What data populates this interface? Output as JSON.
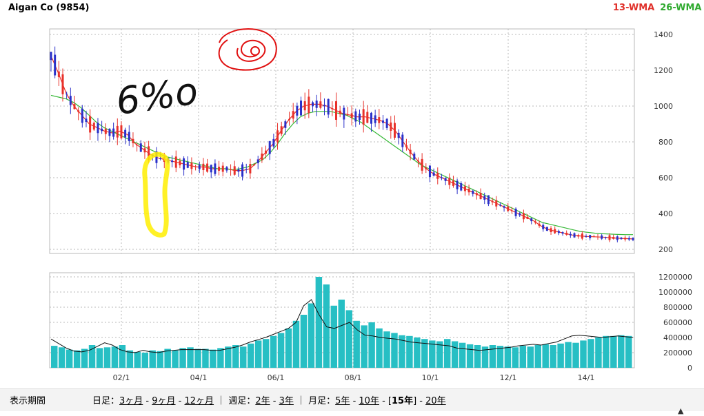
{
  "header": {
    "title": "Aigan Co (9854)",
    "legend_13": "13-WMA",
    "legend_26": "26-WMA"
  },
  "colors": {
    "up": "#e8312a",
    "down": "#2a30c9",
    "wma13": "#e8302a",
    "wma26": "#35b835",
    "volume": "#27bfc4",
    "grid": "#b8b8b8",
    "annot_yellow": "#ffef00",
    "annot_red": "#e01010",
    "annot_black": "#111111"
  },
  "chart_data": [
    {
      "type": "candlestick",
      "title": "Aigan Co (9854)",
      "x_tick_labels": [
        "02/1",
        "04/1",
        "06/1",
        "08/1",
        "10/1",
        "12/1",
        "14/1"
      ],
      "ylim": [
        200,
        1400
      ],
      "y_ticks": [
        200,
        400,
        600,
        800,
        1000,
        1200,
        1400
      ],
      "grid": true,
      "legend_position": "top-right",
      "series": [
        {
          "name": "13-WMA",
          "values": [
            1280,
            1180,
            1070,
            1000,
            950,
            900,
            880,
            860,
            850,
            860,
            840,
            790,
            760,
            730,
            710,
            700,
            690,
            680,
            670,
            660,
            660,
            650,
            650,
            650,
            640,
            640,
            650,
            690,
            740,
            790,
            860,
            920,
            970,
            1000,
            1010,
            1010,
            1000,
            980,
            960,
            950,
            940,
            940,
            930,
            920,
            900,
            860,
            800,
            740,
            690,
            650,
            620,
            600,
            580,
            560,
            540,
            520,
            500,
            480,
            460,
            440,
            420,
            400,
            380,
            360,
            330,
            310,
            300,
            290,
            280,
            275,
            272,
            270,
            268,
            265,
            262,
            260,
            258
          ]
        },
        {
          "name": "26-WMA",
          "values": [
            1060,
            1050,
            1040,
            1020,
            990,
            950,
            910,
            880,
            860,
            840,
            820,
            800,
            780,
            760,
            740,
            720,
            710,
            700,
            690,
            680,
            670,
            660,
            650,
            650,
            645,
            650,
            660,
            680,
            700,
            740,
            790,
            850,
            900,
            940,
            960,
            970,
            970,
            970,
            960,
            950,
            930,
            910,
            880,
            850,
            820,
            790,
            760,
            730,
            700,
            670,
            650,
            630,
            610,
            590,
            570,
            550,
            530,
            510,
            490,
            470,
            450,
            430,
            410,
            390,
            370,
            350,
            340,
            330,
            320,
            310,
            300,
            295,
            290,
            287,
            285,
            283,
            282,
            282
          ]
        }
      ]
    },
    {
      "type": "bar",
      "title": "",
      "x_tick_labels": [
        "02/1",
        "04/1",
        "06/1",
        "08/1",
        "10/1",
        "12/1",
        "14/1"
      ],
      "ylim": [
        0,
        1200000
      ],
      "y_ticks": [
        0,
        200000,
        400000,
        600000,
        800000,
        1000000,
        1200000
      ],
      "grid": true,
      "series": [
        {
          "name": "volume",
          "values": [
            290000,
            270000,
            240000,
            230000,
            250000,
            300000,
            260000,
            270000,
            280000,
            300000,
            230000,
            210000,
            200000,
            230000,
            220000,
            250000,
            230000,
            260000,
            270000,
            250000,
            250000,
            240000,
            260000,
            280000,
            300000,
            280000,
            320000,
            360000,
            380000,
            420000,
            460000,
            520000,
            620000,
            700000,
            850000,
            1200000,
            1100000,
            820000,
            900000,
            760000,
            620000,
            560000,
            600000,
            520000,
            480000,
            460000,
            430000,
            420000,
            400000,
            380000,
            360000,
            350000,
            380000,
            350000,
            330000,
            310000,
            300000,
            280000,
            300000,
            290000,
            280000,
            270000,
            290000,
            280000,
            300000,
            310000,
            300000,
            320000,
            340000,
            330000,
            360000,
            380000,
            400000,
            420000,
            420000,
            430000,
            420000
          ]
        },
        {
          "name": "moving-average",
          "values": [
            380000,
            320000,
            260000,
            220000,
            210000,
            230000,
            280000,
            330000,
            300000,
            240000,
            210000,
            200000,
            230000,
            210000,
            200000,
            220000,
            230000,
            240000,
            240000,
            240000,
            240000,
            230000,
            230000,
            250000,
            270000,
            300000,
            340000,
            370000,
            400000,
            440000,
            480000,
            520000,
            600000,
            820000,
            900000,
            700000,
            540000,
            520000,
            560000,
            600000,
            500000,
            430000,
            420000,
            400000,
            390000,
            380000,
            360000,
            340000,
            330000,
            320000,
            310000,
            300000,
            290000,
            260000,
            250000,
            240000,
            230000,
            240000,
            250000,
            260000,
            270000,
            290000,
            300000,
            310000,
            300000,
            320000,
            340000,
            380000,
            420000,
            430000,
            420000,
            410000,
            400000,
            410000,
            420000,
            410000,
            400000
          ]
        }
      ]
    }
  ],
  "annotations": {
    "handwritten_percent": "6%o"
  },
  "period_bar": {
    "label": "表示期間",
    "daily_prefix": "日足：",
    "d3": "3ヶ月",
    "d9": "9ヶ月",
    "d12": "12ヶ月",
    "weekly_prefix": "週足：",
    "w2": "2年",
    "w3": "3年",
    "monthly_prefix": "月足：",
    "m5": "5年",
    "m10": "10年",
    "m15": "15年",
    "m20": "20年"
  }
}
